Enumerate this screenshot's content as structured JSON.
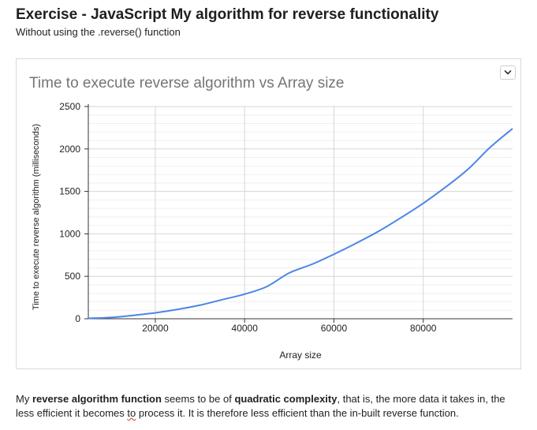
{
  "page": {
    "title": "Exercise - JavaScript My algorithm for reverse functionality",
    "subtitle": "Without using the .reverse() function"
  },
  "chart_menu": {
    "icon": "chevron-down-icon"
  },
  "chart_data": {
    "type": "line",
    "title": "Time to execute reverse algorithm vs Array size",
    "xlabel": "Array size",
    "ylabel": "Time to execute reverse algorithm (milliseconds)",
    "xlim": [
      5000,
      100000
    ],
    "ylim": [
      0,
      2500
    ],
    "x_ticks": [
      "20000",
      "40000",
      "60000",
      "80000"
    ],
    "y_ticks": [
      "0",
      "500",
      "1000",
      "1500",
      "2000",
      "2500"
    ],
    "grid": true,
    "legend": "none",
    "series": [
      {
        "color": "#4a86e8",
        "x": [
          5000,
          10000,
          15000,
          20000,
          25000,
          30000,
          35000,
          40000,
          45000,
          50000,
          55000,
          60000,
          65000,
          70000,
          75000,
          80000,
          85000,
          90000,
          95000,
          100000
        ],
        "y": [
          5,
          15,
          40,
          70,
          110,
          160,
          225,
          290,
          380,
          540,
          640,
          760,
          890,
          1030,
          1190,
          1360,
          1550,
          1760,
          2020,
          2240
        ]
      }
    ]
  },
  "conclusion": {
    "p1": "My ",
    "b1": "reverse algorithm function",
    "p2": " seems to be of ",
    "b2": "quadratic complexity",
    "p3": ", that is, the more data it takes in, the less efficient it becomes ",
    "u1": "to",
    "p4": " process it. It is therefore less efficient than the in-built reverse function."
  }
}
